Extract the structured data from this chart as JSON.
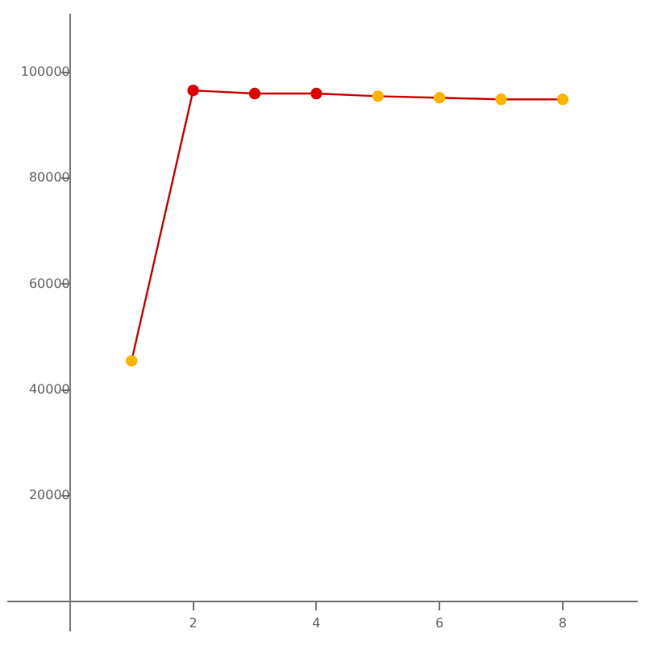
{
  "chart_data": {
    "type": "line",
    "x": [
      1,
      2,
      3,
      4,
      5,
      6,
      7,
      8
    ],
    "series": [
      {
        "color": "#cc0000",
        "colors": [
          "#ffb400",
          "#dd0000",
          "#dd0000",
          "#dd0000",
          "#ffb400",
          "#ffb400",
          "#ffb400",
          "#ffb400"
        ],
        "values": [
          45500,
          96600,
          96000,
          96000,
          95500,
          95200,
          94900,
          94900
        ]
      }
    ],
    "xlim": [
      -1,
      9.2
    ],
    "ylim": [
      -5500,
      111000
    ],
    "xticks": [
      2,
      4,
      6,
      8
    ],
    "yticks": [
      20000,
      40000,
      60000,
      80000,
      100000
    ],
    "grid": false,
    "legend": false,
    "marker": "circle",
    "line_style": "solid"
  }
}
